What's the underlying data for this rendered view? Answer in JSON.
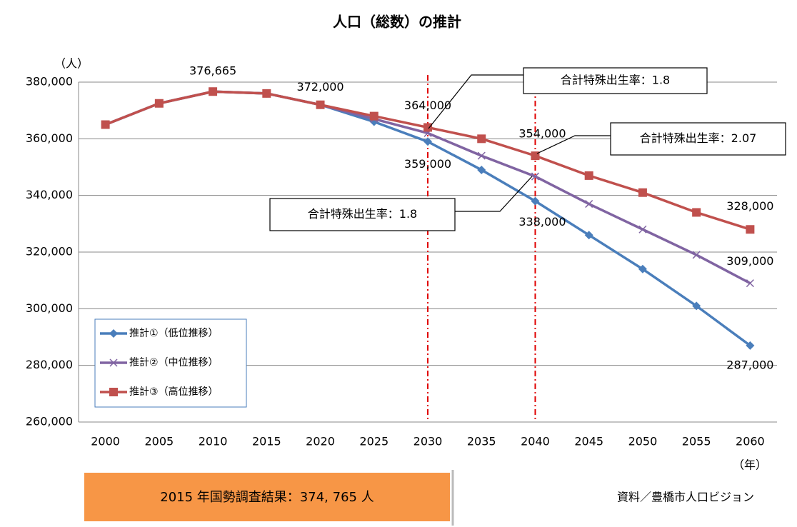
{
  "chart_data": {
    "type": "line",
    "title": "人口（総数）の推計",
    "y_unit": "（人）",
    "x_unit": "（年）",
    "categories": [
      "2000",
      "2005",
      "2010",
      "2015",
      "2020",
      "2025",
      "2030",
      "2035",
      "2040",
      "2045",
      "2050",
      "2055",
      "2060"
    ],
    "ylim": [
      260000,
      380000
    ],
    "yticks": [
      {
        "value": 260000,
        "label": "260,000"
      },
      {
        "value": 280000,
        "label": "280,000"
      },
      {
        "value": 300000,
        "label": "300,000"
      },
      {
        "value": 320000,
        "label": "320,000"
      },
      {
        "value": 340000,
        "label": "340,000"
      },
      {
        "value": 360000,
        "label": "360,000"
      },
      {
        "value": 380000,
        "label": "380,000"
      }
    ],
    "grid": true,
    "legend": "lower-left",
    "reference_lines": {
      "categories": [
        "2030",
        "2040"
      ],
      "color": "#e00000"
    },
    "series": [
      {
        "name": "推計①（低位推移）",
        "color": "#4a7ebb",
        "marker": "diamond",
        "values": [
          365000,
          372500,
          376665,
          376000,
          372000,
          366000,
          359000,
          349000,
          338000,
          326000,
          314000,
          301000,
          287000
        ],
        "value_labels": [
          null,
          null,
          "376,665",
          null,
          "372,000",
          null,
          "359,000",
          null,
          "338,000",
          null,
          null,
          null,
          "287,000"
        ]
      },
      {
        "name": "推計②（中位推移）",
        "color": "#8064a2",
        "marker": "x",
        "values": [
          365000,
          372500,
          376665,
          376000,
          372000,
          367000,
          362000,
          354000,
          346700,
          337000,
          328000,
          319000,
          309000
        ],
        "value_labels": [
          null,
          null,
          null,
          null,
          null,
          null,
          null,
          null,
          null,
          null,
          null,
          null,
          "309,000"
        ]
      },
      {
        "name": "推計③（高位推移）",
        "color": "#c0504d",
        "marker": "square",
        "values": [
          365000,
          372500,
          376665,
          376000,
          372000,
          368000,
          364000,
          360000,
          354000,
          347000,
          341000,
          334000,
          328000
        ],
        "value_labels": [
          null,
          null,
          null,
          null,
          null,
          null,
          "364,000",
          null,
          "354,000",
          null,
          null,
          null,
          "328,000"
        ]
      }
    ],
    "annotations": [
      {
        "text": "合計特殊出生率：1.8"
      },
      {
        "text": "合計特殊出生率：2.07"
      },
      {
        "text": "合計特殊出生率：1.8"
      }
    ]
  },
  "footer": {
    "census": "2015 年国勢調査結果：374, 765 人",
    "source": "資料／豊橋市人口ビジョン"
  }
}
